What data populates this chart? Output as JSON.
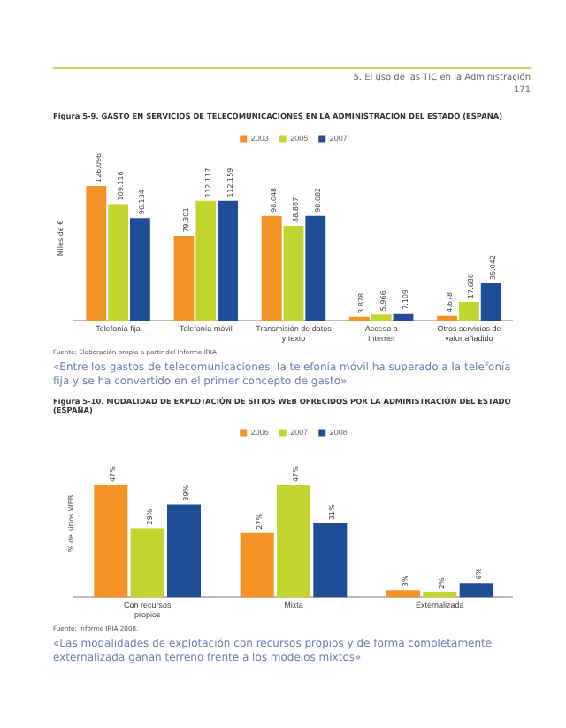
{
  "chart_data": [
    {
      "type": "other",
      "annotations": [
        "5. El uso de las TIC en la Administración",
        "171"
      ]
    },
    {
      "type": "bar",
      "title": "Figura 5-9. GASTO EN SERVICIOS DE TELECOMUNICACIONES EN LA ADMINISTRACIÓN DEL ESTADO (ESPAÑA)",
      "ylabel": "Miles de €",
      "categories": [
        "Telefonía fija",
        "Telefonía móvil",
        "Transmisión de datos y texto",
        "Acceso a Internet",
        "Otros servicios de valor añadido"
      ],
      "series": [
        {
          "name": "2003",
          "color": "#f39325",
          "values": [
            126096,
            79301,
            98048,
            3878,
            4678
          ],
          "value_labels": [
            "126.096",
            "79.301",
            "98.048",
            "3.878",
            "4.678"
          ]
        },
        {
          "name": "2005",
          "color": "#c2d52f",
          "values": [
            109116,
            112117,
            88867,
            5966,
            17686
          ],
          "value_labels": [
            "109.116",
            "112.117",
            "88.867",
            "5.966",
            "17.686"
          ]
        },
        {
          "name": "2007",
          "color": "#1f4e96",
          "values": [
            96134,
            112159,
            98082,
            7109,
            35042
          ],
          "value_labels": [
            "96.134",
            "112.159",
            "98.082",
            "7.109",
            "35.042"
          ]
        }
      ],
      "legend": "top",
      "tick_labels": "x",
      "grid": false,
      "annotations": [
        "Fuente: Elaboración propia a partir del Informe IRIA",
        "«Entre los gastos de telecomunicaciones, la telefonía móvil ha superado a la telefonía fija y se ha convertido en el primer concepto de gasto»"
      ]
    },
    {
      "type": "bar",
      "title": "Figura 5-10. MODALIDAD DE EXPLOTACIÓN DE SITIOS WEB OFRECIDOS POR LA ADMINISTRACIÓN DEL ESTADO (ESPAÑA)",
      "ylabel": "% de sitios WEB",
      "categories": [
        "Con recursos propios",
        "Mixta",
        "Externalizada"
      ],
      "series": [
        {
          "name": "2006",
          "color": "#f39325",
          "values": [
            47,
            27,
            3
          ],
          "value_labels": [
            "47%",
            "27%",
            "3%"
          ]
        },
        {
          "name": "2007",
          "color": "#c2d52f",
          "values": [
            29,
            47,
            2
          ],
          "value_labels": [
            "29%",
            "47%",
            "2%"
          ]
        },
        {
          "name": "2008",
          "color": "#1f4e96",
          "values": [
            39,
            31,
            6
          ],
          "value_labels": [
            "39%",
            "31%",
            "6%"
          ]
        }
      ],
      "legend": "top",
      "tick_labels": "x",
      "grid": false,
      "annotations": [
        "Fuente: Informe IRIA 2008.",
        "«Las modalidades de explotación con recursos propios y de forma completamente externalizada ganan terreno frente a los modelos mixtos»"
      ]
    }
  ]
}
